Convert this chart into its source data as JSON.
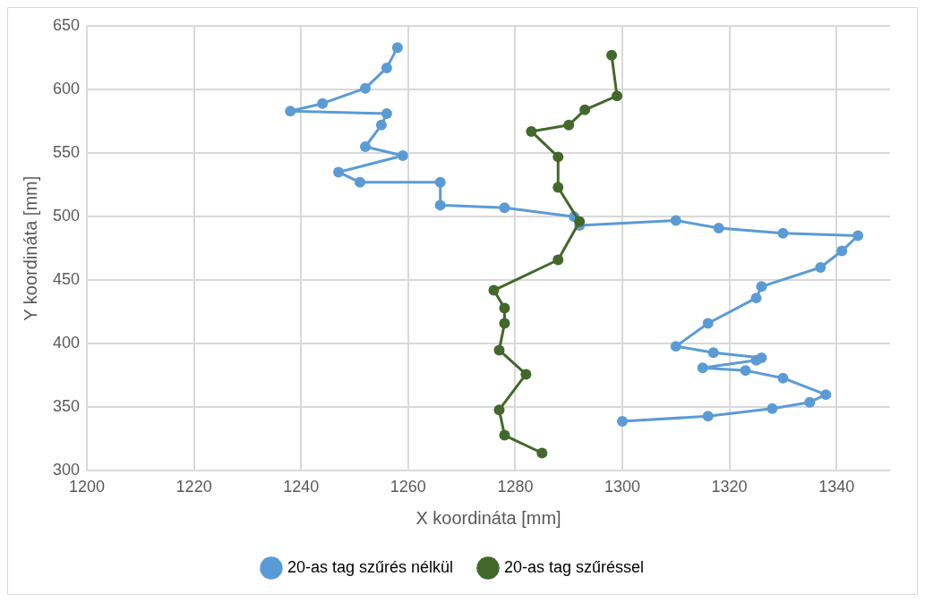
{
  "chart_data": {
    "type": "line",
    "xlabel": "X koordináta [mm]",
    "ylabel": "Y koordináta [mm]",
    "xlim": [
      1200,
      1350
    ],
    "xticks": [
      1200,
      1220,
      1240,
      1260,
      1280,
      1300,
      1320,
      1340
    ],
    "ylim": [
      300,
      650
    ],
    "yticks": [
      300,
      350,
      400,
      450,
      500,
      550,
      600,
      650
    ],
    "grid": true,
    "legend": "bottom",
    "marker": "circle",
    "line_style": "solid",
    "series": [
      {
        "name": "20-as tag szűrés nélkül",
        "color": "#5b9bd5",
        "x": [
          1258,
          1256,
          1252,
          1244,
          1238,
          1256,
          1255,
          1252,
          1259,
          1247,
          1251,
          1266,
          1266,
          1278,
          1291,
          1292,
          1310,
          1318,
          1330,
          1344,
          1341,
          1337,
          1326,
          1325,
          1316,
          1310,
          1317,
          1326,
          1325,
          1315,
          1323,
          1330,
          1338,
          1335,
          1328,
          1316,
          1300
        ],
        "values": [
          633,
          617,
          601,
          589,
          583,
          581,
          572,
          555,
          548,
          535,
          527,
          527,
          509,
          507,
          500,
          493,
          497,
          491,
          487,
          485,
          473,
          460,
          445,
          436,
          416,
          398,
          393,
          389,
          387,
          381,
          379,
          373,
          360,
          354,
          349,
          343,
          339
        ]
      },
      {
        "name": "20-as tag szűréssel",
        "color": "#43682b",
        "x": [
          1298,
          1299,
          1293,
          1290,
          1283,
          1288,
          1288,
          1292,
          1288,
          1276,
          1278,
          1278,
          1277,
          1282,
          1277,
          1278,
          1285
        ],
        "values": [
          627,
          595,
          584,
          572,
          567,
          547,
          523,
          496,
          466,
          442,
          428,
          416,
          395,
          376,
          348,
          328,
          314
        ]
      }
    ]
  }
}
